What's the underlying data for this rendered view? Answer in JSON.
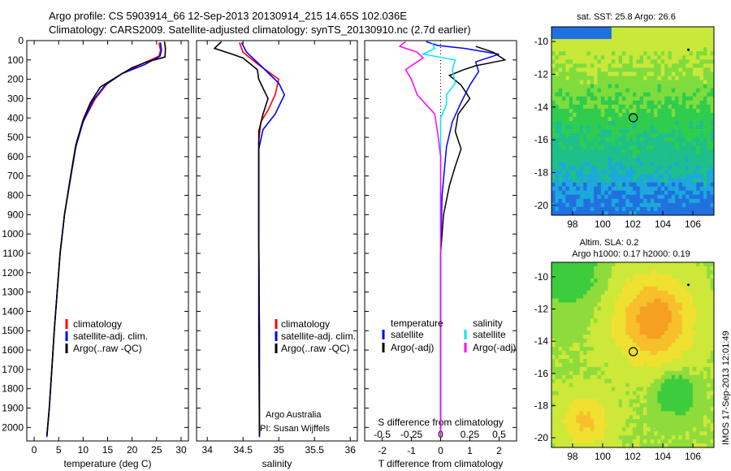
{
  "header": {
    "line1": "Argo profile: CS 5903914_66 12-Sep-2013 20130914_215 14.65S 102.036E",
    "line2": "Climatology: CARS2009. Satellite-adjusted climatology: synTS_20130910.nc (2.7d earlier)"
  },
  "colors": {
    "climatology": "#ff0000",
    "satellite_adj": "#0000ff",
    "argo": "#000000",
    "satellite_s": "#00e5ee",
    "argo_adj_s": "#ff00ff"
  },
  "chart_data": [
    {
      "type": "line",
      "panel": "temperature",
      "xlabel": "temperature (deg C)",
      "ylabel": "",
      "xlim": [
        -1.5,
        31.5
      ],
      "ylim": [
        2070,
        0
      ],
      "xticks": [
        0,
        5,
        10,
        15,
        20,
        25,
        30
      ],
      "yticks": [
        0,
        100,
        200,
        300,
        400,
        500,
        600,
        700,
        800,
        900,
        1000,
        1100,
        1200,
        1300,
        1400,
        1500,
        1600,
        1700,
        1800,
        1900,
        2000
      ],
      "legend": [
        "climatology",
        "satellite-adj. clim.",
        "Argo(..raw -QC)"
      ],
      "series": [
        {
          "name": "climatology",
          "color": "#ff0000",
          "points": [
            [
              25.5,
              10
            ],
            [
              25.8,
              50
            ],
            [
              25.5,
              80
            ],
            [
              22,
              120
            ],
            [
              18,
              170
            ],
            [
              15,
              220
            ],
            [
              12.5,
              300
            ],
            [
              10,
              420
            ],
            [
              8.5,
              550
            ],
            [
              7.5,
              700
            ],
            [
              6.2,
              900
            ],
            [
              5.3,
              1100
            ],
            [
              4.7,
              1300
            ],
            [
              4.1,
              1500
            ],
            [
              3.6,
              1700
            ],
            [
              3.1,
              1900
            ],
            [
              2.6,
              2050
            ]
          ]
        },
        {
          "name": "satellite-adj. clim.",
          "color": "#0000ff",
          "points": [
            [
              25.8,
              10
            ],
            [
              26,
              50
            ],
            [
              25.7,
              80
            ],
            [
              22.5,
              125
            ],
            [
              18,
              170
            ],
            [
              14.5,
              230
            ],
            [
              12,
              310
            ],
            [
              10,
              420
            ],
            [
              8.5,
              550
            ],
            [
              7.5,
              700
            ],
            [
              6.2,
              900
            ],
            [
              5.3,
              1100
            ],
            [
              4.7,
              1300
            ],
            [
              4.1,
              1500
            ],
            [
              3.6,
              1700
            ],
            [
              3.1,
              1900
            ],
            [
              2.6,
              2050
            ]
          ]
        },
        {
          "name": "Argo(..raw -QC)",
          "color": "#000000",
          "points": [
            [
              26.6,
              5
            ],
            [
              26.8,
              40
            ],
            [
              26.7,
              85
            ],
            [
              23,
              110
            ],
            [
              20,
              140
            ],
            [
              17,
              185
            ],
            [
              13.5,
              240
            ],
            [
              11.5,
              320
            ],
            [
              10,
              410
            ],
            [
              8.5,
              540
            ],
            [
              7.5,
              690
            ],
            [
              6.2,
              900
            ],
            [
              5.3,
              1100
            ],
            [
              4.7,
              1300
            ],
            [
              4.1,
              1500
            ],
            [
              3.6,
              1700
            ],
            [
              3.1,
              1900
            ],
            [
              2.6,
              2040
            ]
          ]
        }
      ]
    },
    {
      "type": "line",
      "panel": "salinity",
      "xlabel": "salinity",
      "ylabel": "",
      "xlim": [
        33.85,
        36.1
      ],
      "ylim": [
        2070,
        0
      ],
      "xticks": [
        34,
        34.5,
        35,
        35.5,
        36
      ],
      "legend": [
        "climatology",
        "satellite-adj. clim.",
        "Argo(..raw -QC)"
      ],
      "annotations": [
        "Argo Australia",
        "PI: Susan Wijffels"
      ],
      "series": [
        {
          "name": "climatology",
          "color": "#ff0000",
          "points": [
            [
              34.45,
              10
            ],
            [
              34.5,
              60
            ],
            [
              34.7,
              120
            ],
            [
              35.0,
              200
            ],
            [
              34.95,
              280
            ],
            [
              34.85,
              360
            ],
            [
              34.75,
              420
            ],
            [
              34.72,
              520
            ],
            [
              34.72,
              700
            ],
            [
              34.72,
              1000
            ],
            [
              34.73,
              1500
            ],
            [
              34.73,
              2050
            ]
          ]
        },
        {
          "name": "satellite-adj. clim.",
          "color": "#0000ff",
          "points": [
            [
              34.48,
              10
            ],
            [
              34.55,
              60
            ],
            [
              34.75,
              130
            ],
            [
              35.0,
              220
            ],
            [
              35.08,
              280
            ],
            [
              34.95,
              380
            ],
            [
              34.78,
              460
            ],
            [
              34.72,
              560
            ],
            [
              34.72,
              750
            ],
            [
              34.72,
              1000
            ],
            [
              34.73,
              1500
            ],
            [
              34.73,
              2050
            ]
          ]
        },
        {
          "name": "Argo(..raw -QC)",
          "color": "#000000",
          "points": [
            [
              34.2,
              5
            ],
            [
              34.1,
              40
            ],
            [
              34.35,
              70
            ],
            [
              34.5,
              90
            ],
            [
              34.7,
              150
            ],
            [
              34.72,
              200
            ],
            [
              34.85,
              300
            ],
            [
              34.78,
              380
            ],
            [
              34.72,
              470
            ],
            [
              34.72,
              600
            ],
            [
              34.72,
              800
            ],
            [
              34.72,
              1100
            ],
            [
              34.72,
              1500
            ],
            [
              34.73,
              2040
            ]
          ]
        }
      ]
    },
    {
      "type": "line",
      "panel": "difference",
      "xlabel": "T difference from climatology",
      "xlabel_top": "S difference from climatology",
      "xlim": [
        -2.6,
        2.6
      ],
      "ylim": [
        2070,
        0
      ],
      "xticks_T": [
        -2,
        -1,
        0,
        1,
        2
      ],
      "xticks_S": [
        "-0.5",
        "-0.25",
        "0",
        "0.25",
        "0.5"
      ],
      "legend_temperature_title": "temperature",
      "legend_temperature": [
        "satellite",
        "Argo(-adj)"
      ],
      "legend_salinity_title": "salinity",
      "legend_salinity": [
        "satellite",
        "Argo(-adj)"
      ],
      "series": [
        {
          "name": "temperature satellite",
          "color": "#0000ff",
          "points": [
            [
              -0.5,
              5
            ],
            [
              -0.1,
              25
            ],
            [
              0.8,
              40
            ],
            [
              2.0,
              70
            ],
            [
              1.2,
              110
            ],
            [
              1.3,
              160
            ],
            [
              1.0,
              230
            ],
            [
              0.7,
              320
            ],
            [
              0.4,
              420
            ],
            [
              0.2,
              550
            ],
            [
              0.05,
              800
            ],
            [
              0,
              1100
            ],
            [
              0,
              1500
            ],
            [
              0,
              2050
            ]
          ]
        },
        {
          "name": "temperature Argo(-adj)",
          "color": "#000000",
          "points": [
            [
              1.2,
              30
            ],
            [
              1.8,
              60
            ],
            [
              2.2,
              100
            ],
            [
              1.2,
              130
            ],
            [
              0.8,
              150
            ],
            [
              0.3,
              180
            ],
            [
              0.7,
              230
            ],
            [
              1.0,
              300
            ],
            [
              0.6,
              380
            ],
            [
              0.5,
              470
            ],
            [
              0.7,
              560
            ],
            [
              0.5,
              650
            ],
            [
              0.3,
              750
            ],
            [
              0.1,
              900
            ],
            [
              0,
              1100
            ],
            [
              0,
              1500
            ],
            [
              0,
              2040
            ]
          ]
        },
        {
          "name": "salinity satellite",
          "color": "#00e5ee",
          "points": [
            [
              -0.3,
              10
            ],
            [
              -0.2,
              40
            ],
            [
              -0.6,
              70
            ],
            [
              0.5,
              100
            ],
            [
              0.4,
              150
            ],
            [
              0.5,
              220
            ],
            [
              0.2,
              280
            ],
            [
              0.2,
              330
            ],
            [
              0,
              400
            ],
            [
              0,
              600
            ],
            [
              0,
              900
            ],
            [
              0,
              1200
            ],
            [
              0,
              2050
            ]
          ]
        },
        {
          "name": "salinity Argo(-adj)",
          "color": "#ff00ff",
          "points": [
            [
              -1.2,
              5
            ],
            [
              -1.4,
              30
            ],
            [
              -0.8,
              60
            ],
            [
              -0.6,
              90
            ],
            [
              -1.2,
              150
            ],
            [
              -1.0,
              200
            ],
            [
              -0.8,
              280
            ],
            [
              -0.2,
              380
            ],
            [
              -0.1,
              480
            ],
            [
              0,
              600
            ],
            [
              0,
              900
            ],
            [
              0,
              1200
            ],
            [
              0,
              2050
            ]
          ]
        }
      ]
    },
    {
      "type": "heatmap",
      "panel": "sst_map",
      "title": "sat. SST: 25.8 Argo: 26.6",
      "xlim": [
        96.6,
        107.4
      ],
      "ylim": [
        -20.6,
        -9.1
      ],
      "xticks": [
        98,
        100,
        102,
        104,
        106
      ],
      "yticks": [
        -10,
        -12,
        -14,
        -16,
        -18,
        -20
      ],
      "marker": {
        "lon": 102.036,
        "lat": -14.65
      }
    },
    {
      "type": "heatmap",
      "panel": "sla_map",
      "title": "Altim. SLA: 0.2",
      "subtitle": "Argo h1000: 0.17 h2000: 0.19",
      "xlim": [
        96.6,
        107.4
      ],
      "ylim": [
        -20.6,
        -9.1
      ],
      "xticks": [
        98,
        100,
        102,
        104,
        106
      ],
      "yticks": [
        -10,
        -12,
        -14,
        -16,
        -18,
        -20
      ],
      "marker": {
        "lon": 102.036,
        "lat": -14.65
      }
    }
  ],
  "footer": {
    "vertical_note": "IMOS 17-Sep-2013 12:01:49"
  }
}
